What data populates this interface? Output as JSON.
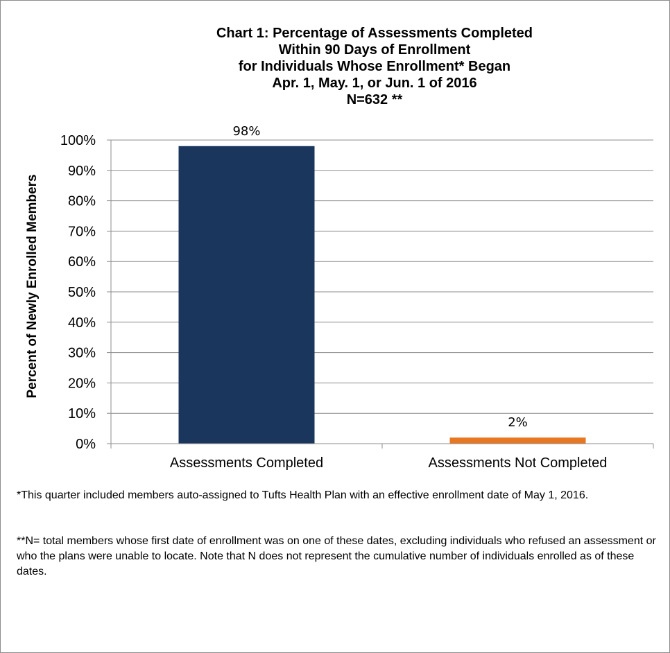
{
  "chart_data": {
    "type": "bar",
    "title_lines": [
      "Chart 1: Percentage of Assessments Completed",
      "Within 90 Days of Enrollment",
      "for Individuals Whose Enrollment* Began",
      "Apr. 1, May. 1, or Jun. 1 of 2016",
      "N=632 **"
    ],
    "ylabel": "Percent of Newly Enrolled Members",
    "xlabel": "",
    "categories": [
      "Assessments Completed",
      "Assessments Not Completed"
    ],
    "values": [
      98,
      2
    ],
    "data_labels": [
      "98%",
      "2%"
    ],
    "bar_colors": [
      "#1b365d",
      "#e87722"
    ],
    "ylim": [
      0,
      100
    ],
    "yticks": [
      0,
      10,
      20,
      30,
      40,
      50,
      60,
      70,
      80,
      90,
      100
    ],
    "ytick_labels": [
      "0%",
      "10%",
      "20%",
      "30%",
      "40%",
      "50%",
      "60%",
      "70%",
      "80%",
      "90%",
      "100%"
    ],
    "grid": true,
    "legend": "none"
  },
  "notes": {
    "note1": "*This quarter included members auto-assigned to Tufts Health Plan with an effective enrollment date of May 1, 2016.",
    "note2": "**N= total members whose first date of enrollment was on one of these dates, excluding individuals who refused an assessment or who the plans were unable to locate. Note that N does not represent the cumulative number of individuals enrolled as of these dates."
  }
}
